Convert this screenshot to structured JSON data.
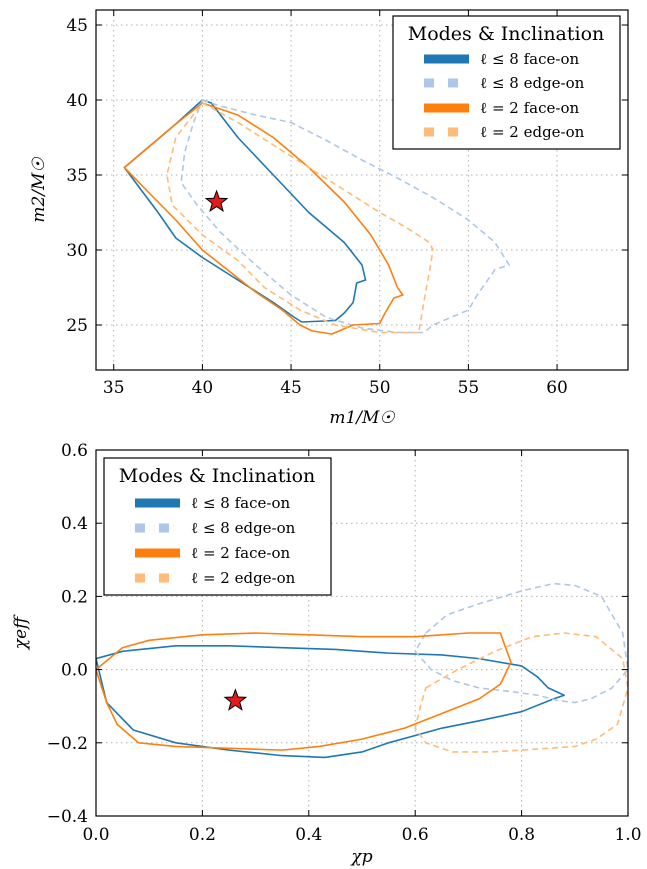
{
  "colors": {
    "l8": "#1f77b4",
    "l8_light": "#aec7e8",
    "l2": "#ff7f0e",
    "l2_light": "#ffbb78",
    "star": "#e31a1c"
  },
  "legend": {
    "title": "Modes & Inclination",
    "entries": [
      {
        "label": "ℓ ≤ 8 face-on",
        "color": "#1f77b4",
        "style": "solid"
      },
      {
        "label": "ℓ ≤ 8 edge-on",
        "color": "#aec7e8",
        "style": "dashed"
      },
      {
        "label": "ℓ = 2 face-on",
        "color": "#ff7f0e",
        "style": "solid"
      },
      {
        "label": "ℓ = 2 edge-on",
        "color": "#ffbb78",
        "style": "dashed"
      }
    ]
  },
  "chart_data": [
    {
      "type": "line",
      "xlabel": "m1/M☉",
      "ylabel": "m2/M☉",
      "xlim": [
        34,
        64
      ],
      "ylim": [
        22,
        46
      ],
      "xticks": [
        35,
        40,
        45,
        50,
        55,
        60
      ],
      "yticks": [
        25,
        30,
        35,
        40,
        45
      ],
      "grid": true,
      "legend_position": "top-right",
      "star": {
        "x": 40.8,
        "y": 33.2
      },
      "series": [
        {
          "name": "ℓ ≤ 8 face-on",
          "color": "#1f77b4",
          "dashed": false,
          "x": [
            35.6,
            37,
            38.5,
            40,
            40.5,
            42,
            44,
            46,
            48,
            49,
            49.2,
            48.7,
            48.5,
            48,
            47.5,
            45.6,
            45.2,
            44,
            42,
            40,
            38.5,
            37.5,
            35.6
          ],
          "y": [
            35.5,
            36.9,
            38.4,
            40,
            39.8,
            37.5,
            35,
            32.5,
            30.5,
            29,
            28,
            27.8,
            26.5,
            25.8,
            25.3,
            25.2,
            25.5,
            26.5,
            28,
            29.5,
            30.8,
            32.5,
            35.5
          ]
        },
        {
          "name": "ℓ ≤ 8 edge-on",
          "color": "#aec7e8",
          "dashed": true,
          "x": [
            40,
            41,
            43,
            45,
            47,
            49,
            51,
            53,
            55,
            56.5,
            57.3,
            56.5,
            55.5,
            55,
            53,
            52.5,
            51,
            49,
            47,
            45,
            43,
            41,
            39.7,
            38.8,
            39,
            39.5,
            40
          ],
          "y": [
            40,
            39.6,
            39,
            38.5,
            37.3,
            36,
            34.8,
            33.5,
            32,
            30.5,
            29,
            28.7,
            27,
            26,
            25,
            24.5,
            24.5,
            24.8,
            25.5,
            27,
            29,
            31.2,
            33,
            34.5,
            36.5,
            38.5,
            40
          ]
        },
        {
          "name": "ℓ = 2 face-on",
          "color": "#ff7f0e",
          "dashed": false,
          "x": [
            35.6,
            37,
            38.5,
            40,
            42,
            44,
            46,
            48,
            49.5,
            50.5,
            51,
            51.3,
            50.8,
            50.3,
            50,
            48.5,
            47.3,
            46.2,
            45.5,
            44.5,
            43,
            41.5,
            40,
            38.5,
            37,
            35.6
          ],
          "y": [
            35.5,
            36.9,
            38.4,
            39.8,
            39,
            37.5,
            35.5,
            33.2,
            31,
            29,
            27.5,
            27,
            26.8,
            25.8,
            25.1,
            25,
            24.4,
            24.6,
            25,
            26,
            27.2,
            28.6,
            30,
            32,
            33.8,
            35.5
          ]
        },
        {
          "name": "ℓ = 2 edge-on",
          "color": "#ffbb78",
          "dashed": true,
          "x": [
            40,
            42,
            44,
            46,
            48,
            50,
            51.5,
            52.8,
            53,
            52.8,
            52.6,
            52.2,
            50,
            47.5,
            45.5,
            43.5,
            42,
            40,
            38.3,
            38,
            38.5,
            40
          ],
          "y": [
            39.8,
            38.5,
            37,
            35.5,
            34,
            32.5,
            31.5,
            30.5,
            30,
            28.5,
            27.3,
            24.5,
            24.5,
            25,
            26,
            27.5,
            29.3,
            31,
            33,
            35,
            37.5,
            39.8
          ]
        }
      ]
    },
    {
      "type": "line",
      "xlabel": "χp",
      "ylabel": "χeff",
      "xlim": [
        0.0,
        1.0
      ],
      "ylim": [
        -0.4,
        0.6
      ],
      "xticks": [
        0.0,
        0.2,
        0.4,
        0.6,
        0.8,
        1.0
      ],
      "yticks": [
        -0.4,
        -0.2,
        0.0,
        0.2,
        0.4,
        0.6
      ],
      "grid": true,
      "legend_position": "top-left",
      "star": {
        "x": 0.262,
        "y": -0.085
      },
      "series": [
        {
          "name": "ℓ ≤ 8 face-on",
          "color": "#1f77b4",
          "dashed": false,
          "x": [
            0.0,
            0.05,
            0.15,
            0.25,
            0.35,
            0.45,
            0.55,
            0.65,
            0.72,
            0.8,
            0.83,
            0.85,
            0.88,
            0.86,
            0.8,
            0.72,
            0.65,
            0.6,
            0.55,
            0.5,
            0.43,
            0.35,
            0.25,
            0.15,
            0.07,
            0.02,
            0.0
          ],
          "y": [
            0.03,
            0.05,
            0.065,
            0.065,
            0.06,
            0.055,
            0.045,
            0.04,
            0.03,
            0.01,
            -0.02,
            -0.05,
            -0.07,
            -0.08,
            -0.115,
            -0.14,
            -0.16,
            -0.18,
            -0.2,
            -0.225,
            -0.24,
            -0.235,
            -0.22,
            -0.2,
            -0.165,
            -0.09,
            0.03
          ]
        },
        {
          "name": "ℓ ≤ 8 edge-on",
          "color": "#aec7e8",
          "dashed": true,
          "x": [
            0.62,
            0.66,
            0.72,
            0.8,
            0.86,
            0.9,
            0.95,
            0.99,
            1.0,
            0.97,
            0.93,
            0.9,
            0.87,
            0.83,
            0.78,
            0.72,
            0.67,
            0.63,
            0.6,
            0.62
          ],
          "y": [
            0.1,
            0.15,
            0.18,
            0.215,
            0.235,
            0.23,
            0.2,
            0.1,
            0.0,
            -0.05,
            -0.08,
            -0.09,
            -0.085,
            -0.07,
            -0.06,
            -0.05,
            -0.03,
            0.0,
            0.05,
            0.1
          ]
        },
        {
          "name": "ℓ = 2 face-on",
          "color": "#ff7f0e",
          "dashed": false,
          "x": [
            0.0,
            0.05,
            0.1,
            0.2,
            0.3,
            0.4,
            0.5,
            0.6,
            0.7,
            0.76,
            0.78,
            0.76,
            0.72,
            0.65,
            0.58,
            0.5,
            0.42,
            0.35,
            0.25,
            0.15,
            0.08,
            0.04,
            0.02,
            0.0
          ],
          "y": [
            0.0,
            0.06,
            0.08,
            0.095,
            0.1,
            0.095,
            0.09,
            0.09,
            0.1,
            0.1,
            0.02,
            -0.04,
            -0.08,
            -0.12,
            -0.16,
            -0.19,
            -0.21,
            -0.22,
            -0.215,
            -0.21,
            -0.2,
            -0.15,
            -0.09,
            0.0
          ]
        },
        {
          "name": "ℓ = 2 edge-on",
          "color": "#ffbb78",
          "dashed": true,
          "x": [
            0.62,
            0.68,
            0.75,
            0.82,
            0.88,
            0.94,
            0.99,
            1.0,
            0.98,
            0.94,
            0.9,
            0.85,
            0.8,
            0.74,
            0.67,
            0.62,
            0.6,
            0.61,
            0.62
          ],
          "y": [
            -0.05,
            0.0,
            0.05,
            0.09,
            0.1,
            0.09,
            0.03,
            -0.05,
            -0.15,
            -0.19,
            -0.21,
            -0.215,
            -0.22,
            -0.225,
            -0.225,
            -0.2,
            -0.16,
            -0.1,
            -0.05
          ]
        }
      ]
    }
  ]
}
